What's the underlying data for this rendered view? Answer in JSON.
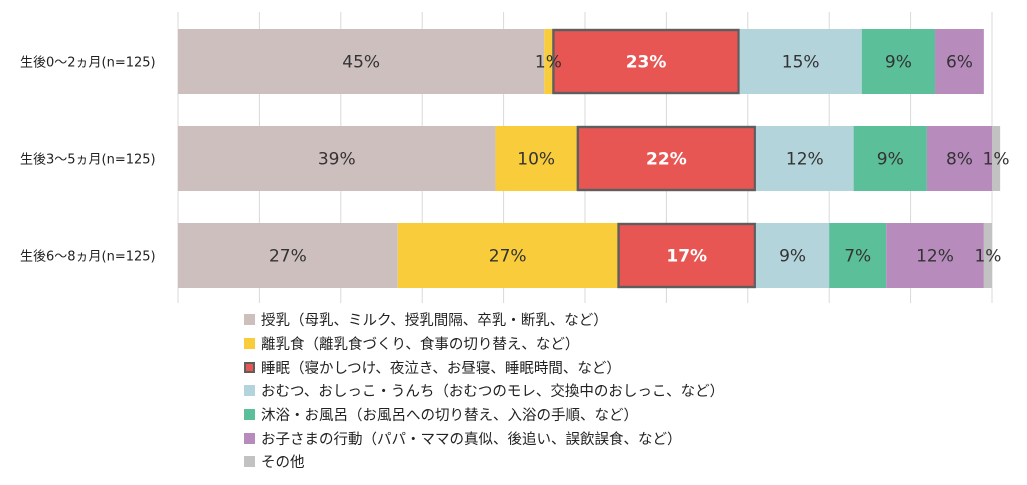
{
  "chart_data": {
    "type": "bar",
    "orientation": "horizontal",
    "stacked": true,
    "percent": true,
    "categories": [
      "生後0～2ヵ月(n=125)",
      "生後3～5ヵ月(n=125)",
      "生後6～8ヵ月(n=125)"
    ],
    "series": [
      {
        "name": "授乳（母乳、ミルク、授乳間隔、卒乳・断乳、など）",
        "color": "#cdbfbe",
        "values": [
          45,
          39,
          27
        ],
        "labels": [
          "45%",
          "39%",
          "27%"
        ]
      },
      {
        "name": "離乳食（離乳食づくり、食事の切り替え、など）",
        "color": "#f8cc3a",
        "values": [
          1,
          10,
          27
        ],
        "labels": [
          "1%",
          "10%",
          "27%"
        ]
      },
      {
        "name": "睡眠（寝かしつけ、夜泣き、お昼寝、睡眠時間、など）",
        "color": "#e85654",
        "highlight": true,
        "values": [
          23,
          22,
          17
        ],
        "labels": [
          "23%",
          "22%",
          "17%"
        ]
      },
      {
        "name": "おむつ、おしっこ・うんち（おむつのモレ、交換中のおしっこ、など）",
        "color": "#b3d4db",
        "values": [
          15,
          12,
          9
        ],
        "labels": [
          "15%",
          "12%",
          "9%"
        ]
      },
      {
        "name": "沐浴・お風呂（お風呂への切り替え、入浴の手順、など）",
        "color": "#5bbf99",
        "values": [
          9,
          9,
          7
        ],
        "labels": [
          "9%",
          "9%",
          "7%"
        ]
      },
      {
        "name": "お子さまの行動（パパ・ママの真似、後追い、誤飲誤食、など）",
        "color": "#b88bbd",
        "values": [
          6,
          8,
          12
        ],
        "labels": [
          "6%",
          "8%",
          "12%"
        ]
      },
      {
        "name": "その他",
        "color": "#c2c2c2",
        "values": [
          0,
          1,
          1
        ],
        "labels": [
          "",
          "1%",
          "1%"
        ]
      }
    ],
    "xlim": [
      0,
      100
    ],
    "grid": true,
    "legend_position": "bottom"
  }
}
